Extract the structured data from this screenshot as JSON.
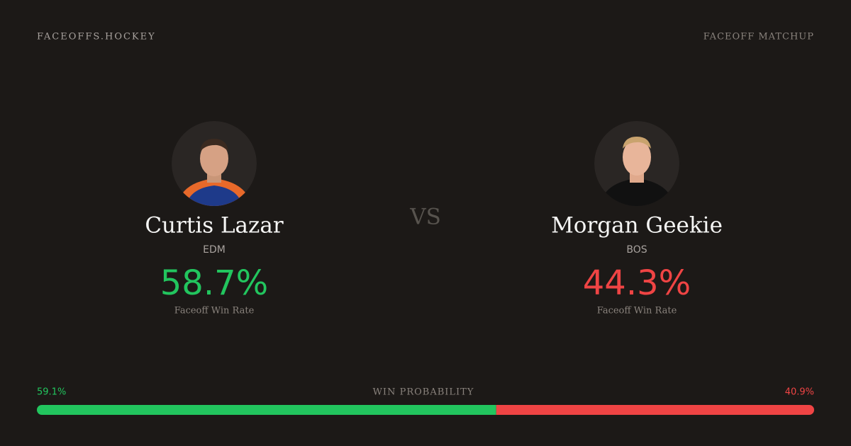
{
  "header": {
    "brand": "FACEOFFS.HOCKEY",
    "label": "FACEOFF MATCHUP"
  },
  "players": [
    {
      "name": "Curtis Lazar",
      "team": "EDM",
      "rate": "58.7%",
      "rate_label": "Faceoff Win Rate",
      "color": "#22c55e"
    },
    {
      "name": "Morgan Geekie",
      "team": "BOS",
      "rate": "44.3%",
      "rate_label": "Faceoff Win Rate",
      "color": "#ef4444"
    }
  ],
  "vs": "VS",
  "probability": {
    "label": "WIN PROBABILITY",
    "values": [
      59.1,
      40.9
    ],
    "value_labels": [
      "59.1%",
      "40.9%"
    ],
    "colors": [
      "#22c55e",
      "#ef4444"
    ]
  }
}
